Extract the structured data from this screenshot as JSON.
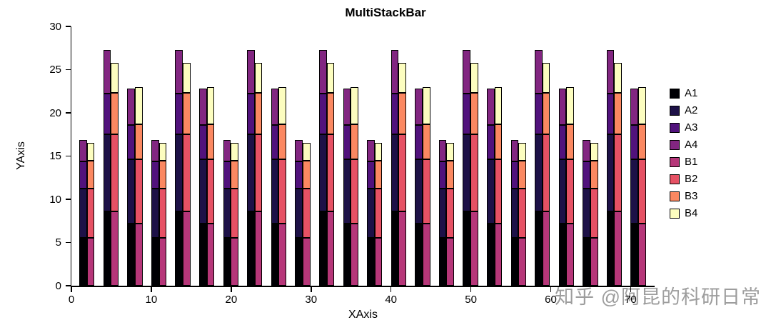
{
  "chart_data": {
    "type": "bar",
    "variant": "grouped-stacked-pairs",
    "title": "MultiStackBar",
    "xlabel": "XAxis",
    "ylabel": "YAxis",
    "xlim": [
      0,
      73
    ],
    "ylim": [
      0,
      30
    ],
    "xticks": [
      0,
      10,
      20,
      30,
      40,
      50,
      60,
      70
    ],
    "yticks": [
      0,
      5,
      10,
      15,
      20,
      25,
      30
    ],
    "grid": false,
    "bar_width": 0.95,
    "pair_x": [
      1,
      4,
      7,
      10,
      13,
      16,
      19,
      22,
      25,
      28,
      31,
      34,
      37,
      40,
      43,
      46,
      49,
      52,
      55,
      58,
      61,
      64,
      67,
      70
    ],
    "stack_totals_cycle": {
      "A": [
        16.9,
        27.3,
        22.8
      ],
      "B": [
        16.5,
        25.8,
        23.0
      ]
    },
    "stacks": [
      {
        "name": "A",
        "x_offset": 0,
        "series": [
          {
            "name": "A1",
            "color": "#000004",
            "values": [
              5.5,
              8.6,
              7.2,
              5.5,
              8.6,
              7.2,
              5.5,
              8.6,
              7.2,
              5.5,
              8.6,
              7.2,
              5.5,
              8.6,
              7.2,
              5.5,
              8.6,
              7.2,
              5.5,
              8.6,
              7.2,
              5.5,
              8.6,
              7.2
            ]
          },
          {
            "name": "A2",
            "color": "#1D1147",
            "values": [
              5.7,
              8.9,
              7.4,
              5.7,
              8.9,
              7.4,
              5.7,
              8.9,
              7.4,
              5.7,
              8.9,
              7.4,
              5.7,
              8.9,
              7.4,
              5.7,
              8.9,
              7.4,
              5.7,
              8.9,
              7.4,
              5.7,
              8.9,
              7.4
            ]
          },
          {
            "name": "A3",
            "color": "#51127C",
            "values": [
              3.2,
              4.7,
              4.0,
              3.2,
              4.7,
              4.0,
              3.2,
              4.7,
              4.0,
              3.2,
              4.7,
              4.0,
              3.2,
              4.7,
              4.0,
              3.2,
              4.7,
              4.0,
              3.2,
              4.7,
              4.0,
              3.2,
              4.7,
              4.0
            ]
          },
          {
            "name": "A4",
            "color": "#822681",
            "values": [
              2.5,
              5.1,
              4.2,
              2.5,
              5.1,
              4.2,
              2.5,
              5.1,
              4.2,
              2.5,
              5.1,
              4.2,
              2.5,
              5.1,
              4.2,
              2.5,
              5.1,
              4.2,
              2.5,
              5.1,
              4.2,
              2.5,
              5.1,
              4.2
            ]
          }
        ]
      },
      {
        "name": "B",
        "x_offset": 0.95,
        "series": [
          {
            "name": "B1",
            "color": "#B63679",
            "values": [
              5.5,
              8.6,
              7.2,
              5.5,
              8.6,
              7.2,
              5.5,
              8.6,
              7.2,
              5.5,
              8.6,
              7.2,
              5.5,
              8.6,
              7.2,
              5.5,
              8.6,
              7.2,
              5.5,
              8.6,
              7.2,
              5.5,
              8.6,
              7.2
            ]
          },
          {
            "name": "B2",
            "color": "#E65164",
            "values": [
              5.7,
              8.9,
              7.4,
              5.7,
              8.9,
              7.4,
              5.7,
              8.9,
              7.4,
              5.7,
              8.9,
              7.4,
              5.7,
              8.9,
              7.4,
              5.7,
              8.9,
              7.4,
              5.7,
              8.9,
              7.4,
              5.7,
              8.9,
              7.4
            ]
          },
          {
            "name": "B3",
            "color": "#FB8861",
            "values": [
              3.3,
              4.8,
              4.1,
              3.3,
              4.8,
              4.1,
              3.3,
              4.8,
              4.1,
              3.3,
              4.8,
              4.1,
              3.3,
              4.8,
              4.1,
              3.3,
              4.8,
              4.1,
              3.3,
              4.8,
              4.1,
              3.3,
              4.8,
              4.1
            ]
          },
          {
            "name": "B4",
            "color": "#FCFDBF",
            "values": [
              2.0,
              3.5,
              4.3,
              2.0,
              3.5,
              4.3,
              2.0,
              3.5,
              4.3,
              2.0,
              3.5,
              4.3,
              2.0,
              3.5,
              4.3,
              2.0,
              3.5,
              4.3,
              2.0,
              3.5,
              4.3,
              2.0,
              3.5,
              4.3
            ]
          }
        ]
      }
    ],
    "legend": {
      "position": "right",
      "entries": [
        {
          "label": "A1",
          "color": "#000004"
        },
        {
          "label": "A2",
          "color": "#1D1147"
        },
        {
          "label": "A3",
          "color": "#51127C"
        },
        {
          "label": "A4",
          "color": "#822681"
        },
        {
          "label": "B1",
          "color": "#B63679"
        },
        {
          "label": "B2",
          "color": "#E65164"
        },
        {
          "label": "B3",
          "color": "#FB8861"
        },
        {
          "label": "B4",
          "color": "#FCFDBF"
        }
      ]
    }
  },
  "watermark": {
    "text": "知乎 @阿昆的科研日常",
    "color": "#8c8c8c"
  }
}
